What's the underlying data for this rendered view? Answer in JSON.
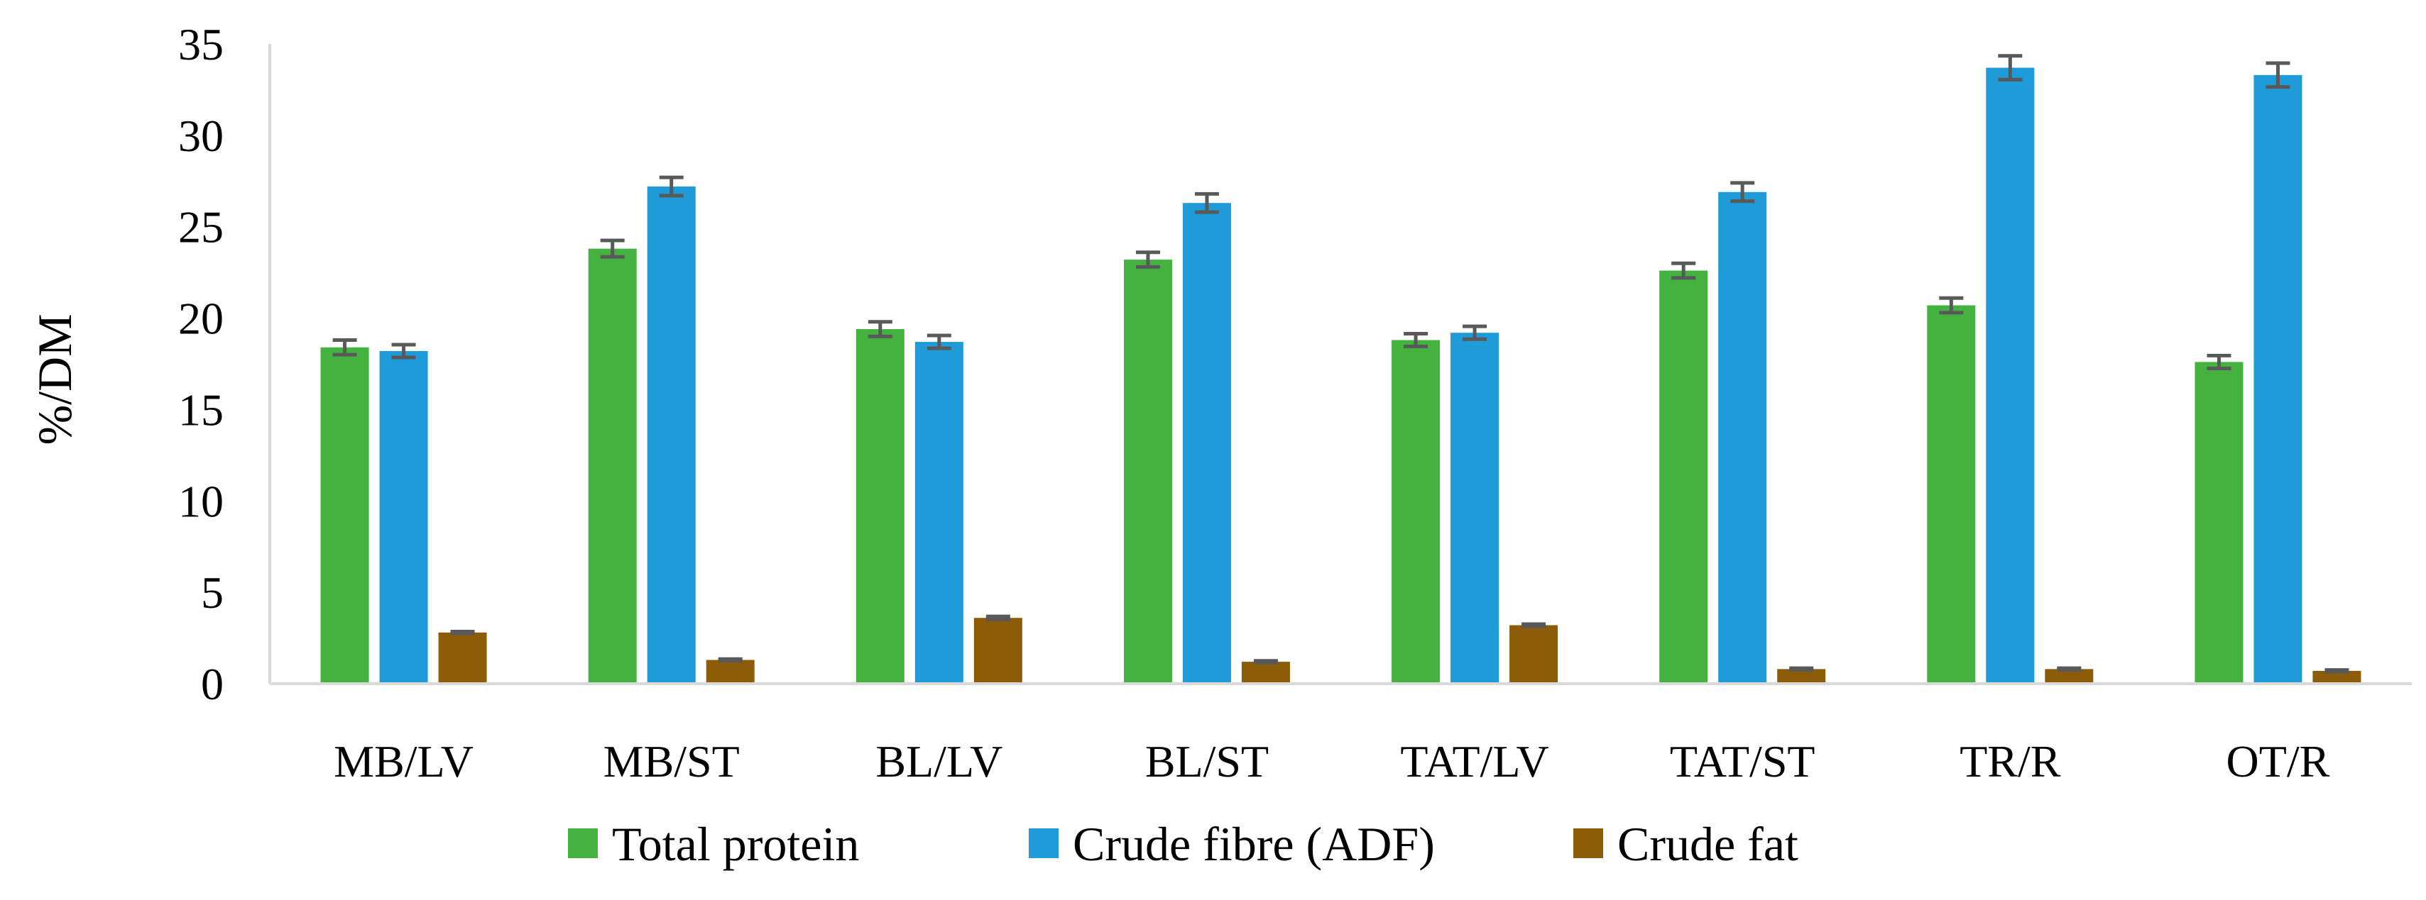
{
  "chart_data": {
    "type": "bar",
    "title": "",
    "xlabel": "",
    "ylabel": "%/DM",
    "ylim": [
      0,
      35
    ],
    "yticks": [
      0,
      5,
      10,
      15,
      20,
      25,
      30,
      35
    ],
    "grid": false,
    "legend_position": "bottom",
    "categories": [
      "MB/LV",
      "MB/ST",
      "BL/LV",
      "BL/ST",
      "TAT/LV",
      "TAT/ST",
      "TR/R",
      "OT/R"
    ],
    "series": [
      {
        "name": "Total protein",
        "color": "#43b23f",
        "values": [
          18.4,
          23.8,
          19.4,
          23.2,
          18.8,
          22.6,
          20.7,
          17.6
        ],
        "errors": [
          0.4,
          0.45,
          0.4,
          0.4,
          0.35,
          0.4,
          0.4,
          0.35
        ]
      },
      {
        "name": "Crude fibre (ADF)",
        "color": "#1e9bd8",
        "values": [
          18.2,
          27.2,
          18.7,
          26.3,
          19.2,
          26.9,
          33.7,
          33.3
        ],
        "errors": [
          0.35,
          0.5,
          0.35,
          0.5,
          0.35,
          0.5,
          0.65,
          0.65
        ]
      },
      {
        "name": "Crude fat",
        "color": "#8c5c06",
        "values": [
          2.8,
          1.3,
          3.6,
          1.2,
          3.2,
          0.8,
          0.8,
          0.7
        ],
        "errors": [
          0.05,
          0.05,
          0.08,
          0.05,
          0.06,
          0.05,
          0.05,
          0.05
        ]
      }
    ],
    "error_bar_color": "#595959"
  }
}
